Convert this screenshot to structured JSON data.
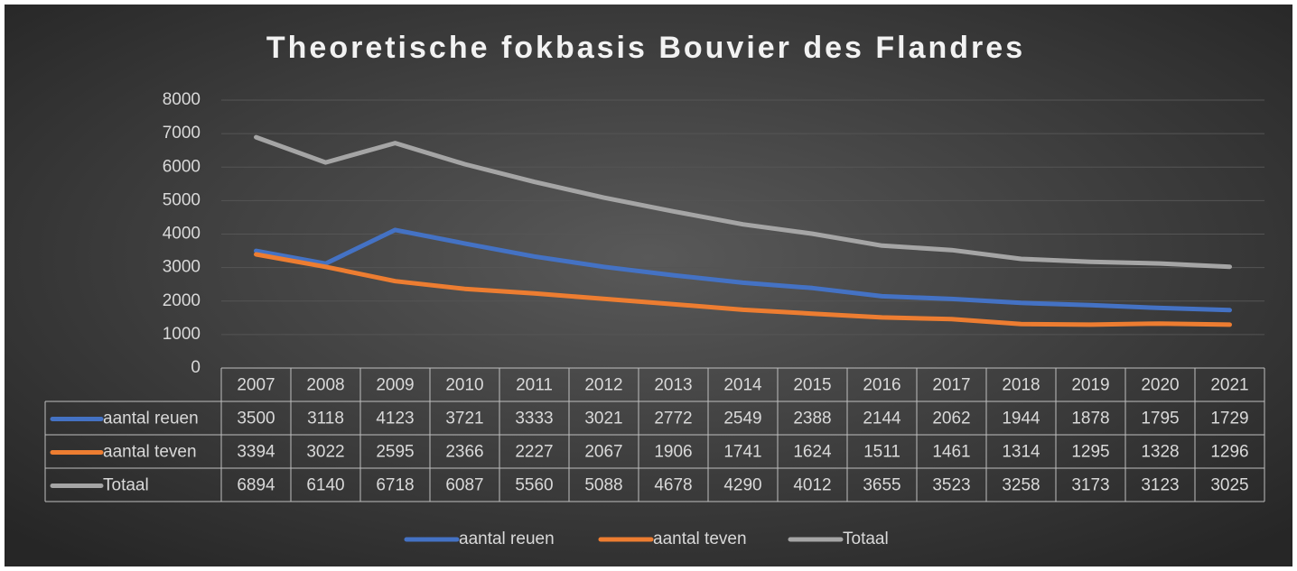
{
  "chart_data": {
    "type": "line",
    "title": "Theoretische fokbasis Bouvier des Flandres",
    "categories": [
      "2007",
      "2008",
      "2009",
      "2010",
      "2011",
      "2012",
      "2013",
      "2014",
      "2015",
      "2016",
      "2017",
      "2018",
      "2019",
      "2020",
      "2021"
    ],
    "series": [
      {
        "name": "aantal reuen",
        "color": "#4472c4",
        "values": [
          3500,
          3118,
          4123,
          3721,
          3333,
          3021,
          2772,
          2549,
          2388,
          2144,
          2062,
          1944,
          1878,
          1795,
          1729
        ]
      },
      {
        "name": "aantal teven",
        "color": "#ed7d31",
        "values": [
          3394,
          3022,
          2595,
          2366,
          2227,
          2067,
          1906,
          1741,
          1624,
          1511,
          1461,
          1314,
          1295,
          1328,
          1296
        ]
      },
      {
        "name": "Totaal",
        "color": "#a5a5a5",
        "values": [
          6894,
          6140,
          6718,
          6087,
          5560,
          5088,
          4678,
          4290,
          4012,
          3655,
          3523,
          3258,
          3173,
          3123,
          3025
        ]
      }
    ],
    "ylim": [
      0,
      8000
    ],
    "yticks": [
      0,
      1000,
      2000,
      3000,
      4000,
      5000,
      6000,
      7000,
      8000
    ],
    "grid": true,
    "legend": "bottom"
  }
}
